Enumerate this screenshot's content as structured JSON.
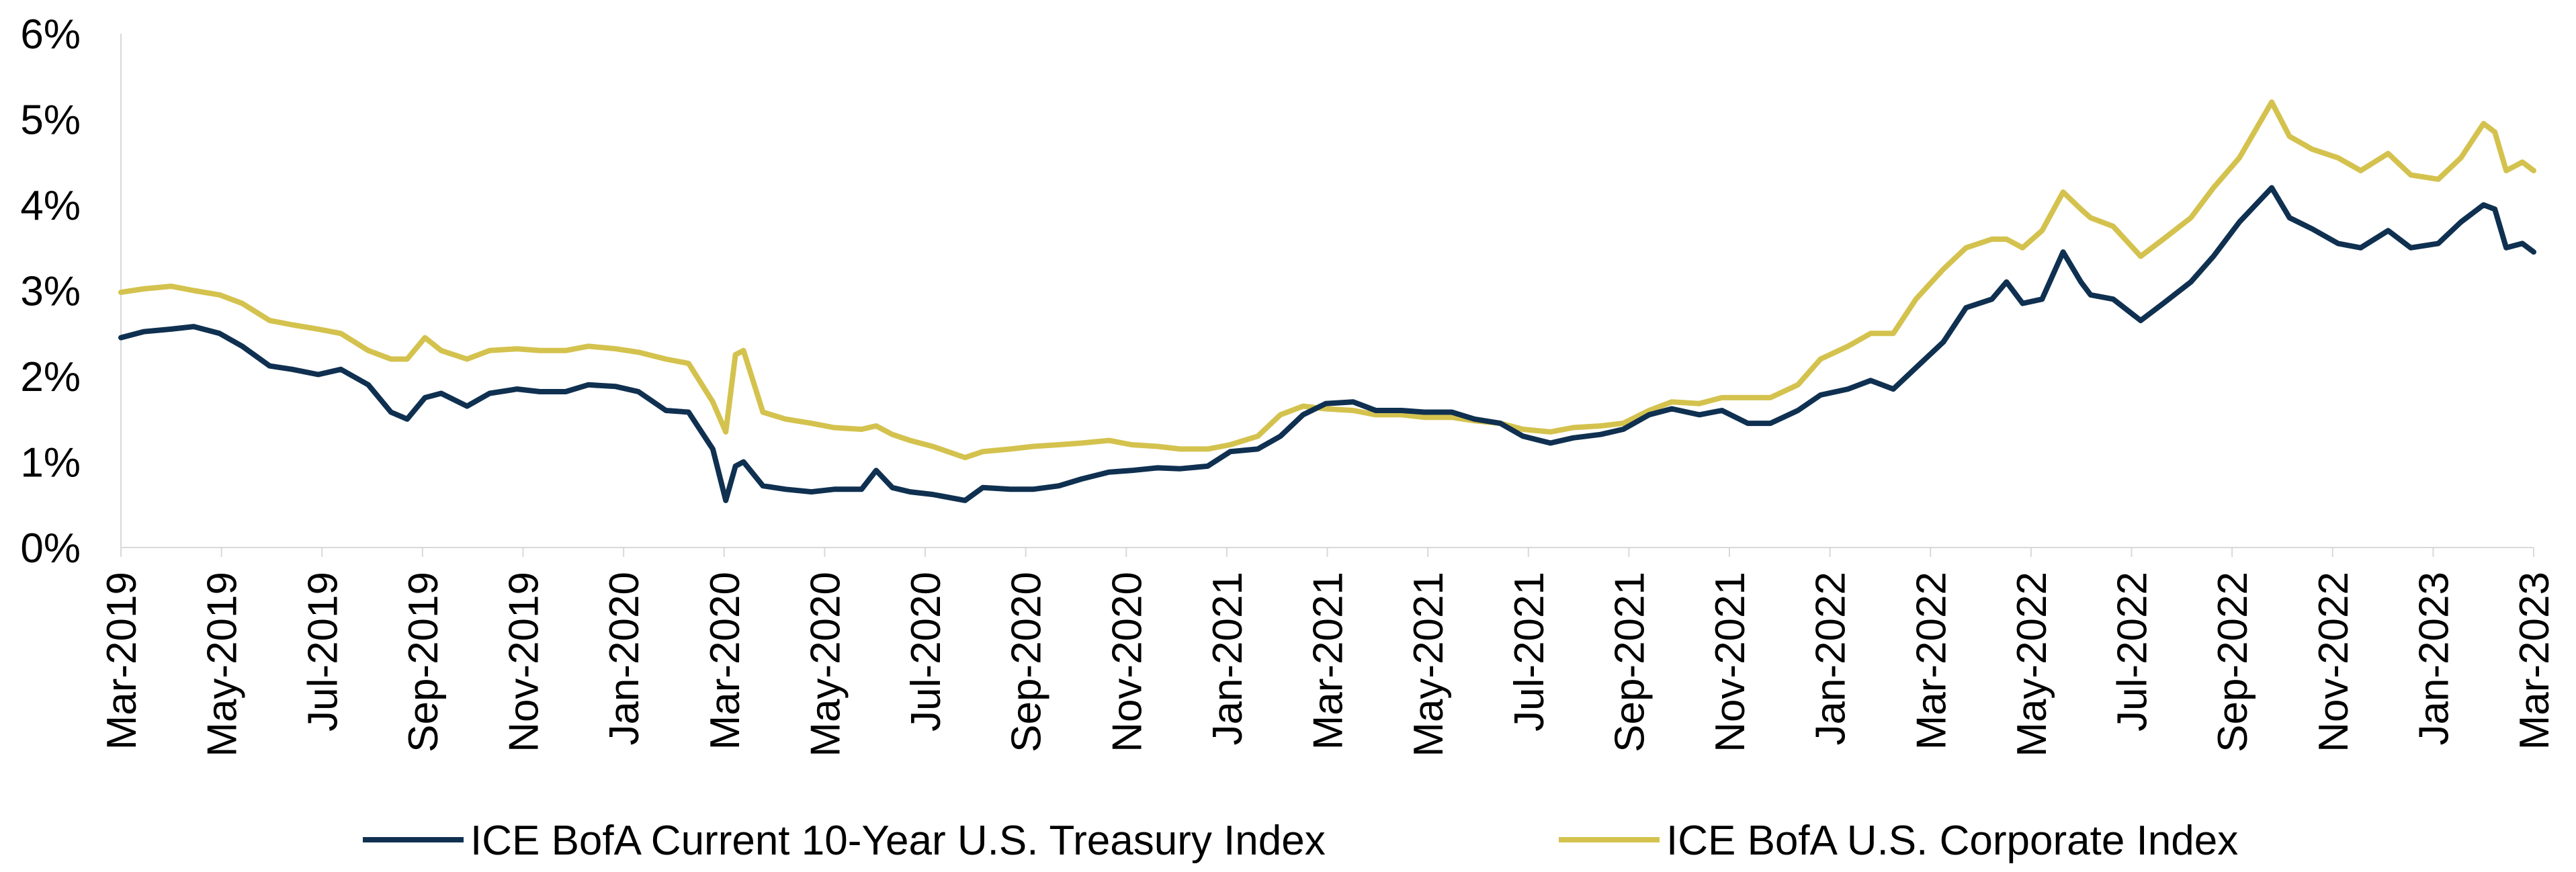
{
  "chart_data": {
    "type": "line",
    "title": "",
    "xlabel": "",
    "ylabel": "",
    "ylim": [
      0,
      6
    ],
    "y_ticks": [
      "0%",
      "1%",
      "2%",
      "3%",
      "4%",
      "5%",
      "6%"
    ],
    "x_ticks": [
      "Mar-2019",
      "May-2019",
      "Jul-2019",
      "Sep-2019",
      "Nov-2019",
      "Jan-2020",
      "Mar-2020",
      "May-2020",
      "Jul-2020",
      "Sep-2020",
      "Nov-2020",
      "Jan-2021",
      "Mar-2021",
      "May-2021",
      "Jul-2021",
      "Sep-2021",
      "Nov-2021",
      "Jan-2022",
      "Mar-2022",
      "May-2022",
      "Jul-2022",
      "Sep-2022",
      "Nov-2022",
      "Jan-2023",
      "Mar-2023"
    ],
    "grid": false,
    "legend_position": "bottom",
    "series": [
      {
        "name": "ICE BofA Current 10-Year U.S. Treasury Index",
        "color": "#0f3050",
        "x": [
          "2019-03-01",
          "2019-03-15",
          "2019-04-01",
          "2019-04-15",
          "2019-05-01",
          "2019-05-15",
          "2019-06-01",
          "2019-06-15",
          "2019-07-01",
          "2019-07-15",
          "2019-08-01",
          "2019-08-15",
          "2019-08-25",
          "2019-09-05",
          "2019-09-15",
          "2019-10-01",
          "2019-10-15",
          "2019-11-01",
          "2019-11-15",
          "2019-12-01",
          "2019-12-15",
          "2020-01-01",
          "2020-01-15",
          "2020-02-01",
          "2020-02-15",
          "2020-03-01",
          "2020-03-09",
          "2020-03-15",
          "2020-03-20",
          "2020-04-01",
          "2020-04-15",
          "2020-05-01",
          "2020-05-15",
          "2020-06-01",
          "2020-06-10",
          "2020-06-20",
          "2020-07-01",
          "2020-07-15",
          "2020-08-04",
          "2020-08-15",
          "2020-09-01",
          "2020-09-15",
          "2020-10-01",
          "2020-10-15",
          "2020-11-01",
          "2020-11-15",
          "2020-12-01",
          "2020-12-15",
          "2021-01-01",
          "2021-01-15",
          "2021-02-01",
          "2021-02-15",
          "2021-03-01",
          "2021-03-15",
          "2021-04-01",
          "2021-04-15",
          "2021-05-01",
          "2021-05-15",
          "2021-06-01",
          "2021-06-15",
          "2021-07-01",
          "2021-07-15",
          "2021-08-01",
          "2021-08-15",
          "2021-09-01",
          "2021-09-15",
          "2021-10-01",
          "2021-10-15",
          "2021-11-01",
          "2021-11-15",
          "2021-12-01",
          "2021-12-15",
          "2022-01-01",
          "2022-01-15",
          "2022-02-01",
          "2022-02-15",
          "2022-03-01",
          "2022-03-15",
          "2022-04-01",
          "2022-04-15",
          "2022-05-01",
          "2022-05-10",
          "2022-05-20",
          "2022-06-01",
          "2022-06-14",
          "2022-06-25",
          "2022-07-01",
          "2022-07-15",
          "2022-08-01",
          "2022-08-15",
          "2022-09-01",
          "2022-09-15",
          "2022-10-01",
          "2022-10-21",
          "2022-11-01",
          "2022-11-15",
          "2022-12-01",
          "2022-12-15",
          "2023-01-01",
          "2023-01-15",
          "2023-02-01",
          "2023-02-15",
          "2023-03-01",
          "2023-03-08",
          "2023-03-15",
          "2023-03-25",
          "2023-04-01"
        ],
        "values": [
          2.45,
          2.52,
          2.55,
          2.58,
          2.5,
          2.35,
          2.12,
          2.08,
          2.02,
          2.08,
          1.9,
          1.58,
          1.5,
          1.75,
          1.8,
          1.65,
          1.8,
          1.85,
          1.82,
          1.82,
          1.9,
          1.88,
          1.82,
          1.6,
          1.58,
          1.15,
          0.55,
          0.95,
          1.0,
          0.72,
          0.68,
          0.65,
          0.68,
          0.68,
          0.9,
          0.7,
          0.65,
          0.62,
          0.55,
          0.7,
          0.68,
          0.68,
          0.72,
          0.8,
          0.88,
          0.9,
          0.93,
          0.92,
          0.95,
          1.12,
          1.15,
          1.3,
          1.55,
          1.68,
          1.7,
          1.6,
          1.6,
          1.58,
          1.58,
          1.5,
          1.45,
          1.3,
          1.22,
          1.28,
          1.32,
          1.38,
          1.55,
          1.62,
          1.55,
          1.6,
          1.45,
          1.45,
          1.6,
          1.78,
          1.85,
          1.95,
          1.85,
          2.1,
          2.4,
          2.8,
          2.9,
          3.1,
          2.85,
          2.9,
          3.45,
          3.1,
          2.95,
          2.9,
          2.65,
          2.85,
          3.1,
          3.4,
          3.8,
          4.2,
          3.85,
          3.72,
          3.55,
          3.5,
          3.7,
          3.5,
          3.55,
          3.8,
          4.0,
          3.95,
          3.5,
          3.55,
          3.45
        ]
      },
      {
        "name": "ICE BofA U.S. Corporate Index",
        "color": "#d4c24e",
        "x": [
          "2019-03-01",
          "2019-03-15",
          "2019-04-01",
          "2019-04-15",
          "2019-05-01",
          "2019-05-15",
          "2019-06-01",
          "2019-06-15",
          "2019-07-01",
          "2019-07-15",
          "2019-08-01",
          "2019-08-15",
          "2019-08-25",
          "2019-09-05",
          "2019-09-15",
          "2019-10-01",
          "2019-10-15",
          "2019-11-01",
          "2019-11-15",
          "2019-12-01",
          "2019-12-15",
          "2020-01-01",
          "2020-01-15",
          "2020-02-01",
          "2020-02-15",
          "2020-03-01",
          "2020-03-09",
          "2020-03-15",
          "2020-03-20",
          "2020-04-01",
          "2020-04-15",
          "2020-05-01",
          "2020-05-15",
          "2020-06-01",
          "2020-06-10",
          "2020-06-20",
          "2020-07-01",
          "2020-07-15",
          "2020-08-04",
          "2020-08-15",
          "2020-09-01",
          "2020-09-15",
          "2020-10-01",
          "2020-10-15",
          "2020-11-01",
          "2020-11-15",
          "2020-12-01",
          "2020-12-15",
          "2021-01-01",
          "2021-01-15",
          "2021-02-01",
          "2021-02-15",
          "2021-03-01",
          "2021-03-15",
          "2021-04-01",
          "2021-04-15",
          "2021-05-01",
          "2021-05-15",
          "2021-06-01",
          "2021-06-15",
          "2021-07-01",
          "2021-07-15",
          "2021-08-01",
          "2021-08-15",
          "2021-09-01",
          "2021-09-15",
          "2021-10-01",
          "2021-10-15",
          "2021-11-01",
          "2021-11-15",
          "2021-12-01",
          "2021-12-15",
          "2022-01-01",
          "2022-01-15",
          "2022-02-01",
          "2022-02-15",
          "2022-03-01",
          "2022-03-15",
          "2022-04-01",
          "2022-04-15",
          "2022-05-01",
          "2022-05-10",
          "2022-05-20",
          "2022-06-01",
          "2022-06-14",
          "2022-06-25",
          "2022-07-01",
          "2022-07-15",
          "2022-08-01",
          "2022-08-15",
          "2022-09-01",
          "2022-09-15",
          "2022-10-01",
          "2022-10-21",
          "2022-11-01",
          "2022-11-15",
          "2022-12-01",
          "2022-12-15",
          "2023-01-01",
          "2023-01-15",
          "2023-02-01",
          "2023-02-15",
          "2023-03-01",
          "2023-03-08",
          "2023-03-15",
          "2023-03-25",
          "2023-04-01"
        ],
        "values": [
          2.98,
          3.02,
          3.05,
          3.0,
          2.95,
          2.85,
          2.65,
          2.6,
          2.55,
          2.5,
          2.3,
          2.2,
          2.2,
          2.45,
          2.3,
          2.2,
          2.3,
          2.32,
          2.3,
          2.3,
          2.35,
          2.32,
          2.28,
          2.2,
          2.15,
          1.7,
          1.35,
          2.25,
          2.3,
          1.58,
          1.5,
          1.45,
          1.4,
          1.38,
          1.42,
          1.32,
          1.25,
          1.18,
          1.05,
          1.12,
          1.15,
          1.18,
          1.2,
          1.22,
          1.25,
          1.2,
          1.18,
          1.15,
          1.15,
          1.2,
          1.3,
          1.55,
          1.65,
          1.62,
          1.6,
          1.55,
          1.55,
          1.52,
          1.52,
          1.48,
          1.45,
          1.38,
          1.35,
          1.4,
          1.42,
          1.45,
          1.6,
          1.7,
          1.68,
          1.75,
          1.75,
          1.75,
          1.9,
          2.2,
          2.35,
          2.5,
          2.5,
          2.9,
          3.25,
          3.5,
          3.6,
          3.6,
          3.5,
          3.7,
          4.15,
          3.95,
          3.85,
          3.75,
          3.4,
          3.6,
          3.85,
          4.2,
          4.55,
          5.2,
          4.8,
          4.65,
          4.55,
          4.4,
          4.6,
          4.35,
          4.3,
          4.55,
          4.95,
          4.85,
          4.4,
          4.5,
          4.4
        ]
      }
    ]
  }
}
